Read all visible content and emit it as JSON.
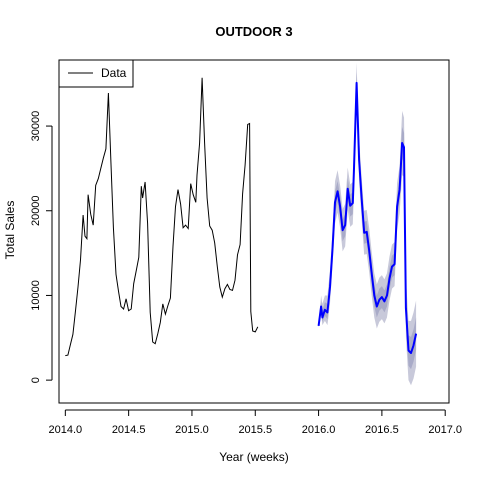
{
  "chart_data": {
    "type": "line",
    "title": "OUTDOOR 3",
    "xlabel": "Year (weeks)",
    "ylabel": "Total Sales",
    "xlim": [
      2013.95,
      2017.03
    ],
    "ylim": [
      -2700,
      37800
    ],
    "x_ticks": [
      2014.0,
      2014.5,
      2015.0,
      2015.5,
      2016.0,
      2016.5,
      2017.0
    ],
    "x_tick_labels": [
      "2014.0",
      "2014.5",
      "2015.0",
      "2015.5",
      "2016.0",
      "2016.5",
      "2017.0"
    ],
    "y_ticks": [
      0,
      10000,
      20000,
      30000
    ],
    "y_tick_labels": [
      "0",
      "10000",
      "20000",
      "30000"
    ],
    "legend": {
      "position": "top-left",
      "entries": [
        "Data"
      ]
    },
    "colors": {
      "data": "#000000",
      "forecast": "#0000ff",
      "band_outer": "#c8c9da",
      "band_inner": "#a9abc8"
    },
    "series": [
      {
        "name": "Data",
        "points": [
          [
            2014.0,
            2900
          ],
          [
            2014.02,
            2950
          ],
          [
            2014.04,
            4200
          ],
          [
            2014.06,
            5400
          ],
          [
            2014.08,
            8200
          ],
          [
            2014.1,
            11000
          ],
          [
            2014.12,
            14200
          ],
          [
            2014.14,
            19500
          ],
          [
            2014.155,
            17000
          ],
          [
            2014.17,
            16700
          ],
          [
            2014.18,
            21900
          ],
          [
            2014.2,
            19600
          ],
          [
            2014.22,
            18300
          ],
          [
            2014.24,
            23000
          ],
          [
            2014.26,
            23800
          ],
          [
            2014.28,
            25000
          ],
          [
            2014.3,
            26200
          ],
          [
            2014.32,
            27300
          ],
          [
            2014.34,
            33900
          ],
          [
            2014.36,
            25800
          ],
          [
            2014.38,
            18000
          ],
          [
            2014.4,
            12500
          ],
          [
            2014.42,
            10500
          ],
          [
            2014.44,
            8700
          ],
          [
            2014.46,
            8400
          ],
          [
            2014.48,
            9600
          ],
          [
            2014.5,
            8200
          ],
          [
            2014.52,
            8400
          ],
          [
            2014.54,
            11400
          ],
          [
            2014.56,
            12900
          ],
          [
            2014.58,
            14500
          ],
          [
            2014.6,
            22900
          ],
          [
            2014.61,
            21500
          ],
          [
            2014.63,
            23400
          ],
          [
            2014.65,
            18500
          ],
          [
            2014.67,
            8000
          ],
          [
            2014.69,
            4500
          ],
          [
            2014.71,
            4300
          ],
          [
            2014.73,
            5500
          ],
          [
            2014.75,
            6800
          ],
          [
            2014.77,
            9000
          ],
          [
            2014.79,
            7800
          ],
          [
            2014.81,
            8800
          ],
          [
            2014.83,
            9700
          ],
          [
            2014.85,
            15800
          ],
          [
            2014.87,
            20500
          ],
          [
            2014.89,
            22500
          ],
          [
            2014.91,
            20800
          ],
          [
            2014.93,
            18000
          ],
          [
            2014.95,
            18300
          ],
          [
            2014.97,
            17900
          ],
          [
            2014.99,
            23200
          ],
          [
            2015.01,
            21900
          ],
          [
            2015.03,
            21000
          ],
          [
            2015.04,
            24200
          ],
          [
            2015.06,
            28000
          ],
          [
            2015.08,
            35700
          ],
          [
            2015.1,
            28000
          ],
          [
            2015.12,
            21500
          ],
          [
            2015.14,
            18200
          ],
          [
            2015.16,
            17700
          ],
          [
            2015.18,
            16200
          ],
          [
            2015.2,
            13400
          ],
          [
            2015.22,
            11000
          ],
          [
            2015.24,
            9800
          ],
          [
            2015.26,
            10800
          ],
          [
            2015.28,
            11300
          ],
          [
            2015.3,
            10700
          ],
          [
            2015.32,
            10600
          ],
          [
            2015.34,
            11800
          ],
          [
            2015.36,
            14800
          ],
          [
            2015.38,
            16000
          ],
          [
            2015.4,
            22000
          ],
          [
            2015.42,
            25400
          ],
          [
            2015.44,
            30200
          ],
          [
            2015.455,
            30300
          ],
          [
            2015.465,
            8100
          ],
          [
            2015.48,
            5800
          ],
          [
            2015.5,
            5700
          ],
          [
            2015.52,
            6300
          ]
        ]
      },
      {
        "name": "",
        "points": [
          [
            2016.0,
            6400
          ],
          [
            2016.02,
            8700
          ],
          [
            2016.03,
            7400
          ],
          [
            2016.05,
            8300
          ],
          [
            2016.07,
            8000
          ],
          [
            2016.09,
            11000
          ],
          [
            2016.11,
            15500
          ],
          [
            2016.13,
            21000
          ],
          [
            2016.15,
            22300
          ],
          [
            2016.17,
            20500
          ],
          [
            2016.19,
            17700
          ],
          [
            2016.21,
            18300
          ],
          [
            2016.23,
            22600
          ],
          [
            2016.25,
            20600
          ],
          [
            2016.27,
            20900
          ],
          [
            2016.28,
            25000
          ],
          [
            2016.3,
            35100
          ],
          [
            2016.32,
            26000
          ],
          [
            2016.34,
            21500
          ],
          [
            2016.36,
            17400
          ],
          [
            2016.38,
            17500
          ],
          [
            2016.4,
            15300
          ],
          [
            2016.42,
            12500
          ],
          [
            2016.44,
            10000
          ],
          [
            2016.46,
            8700
          ],
          [
            2016.48,
            9500
          ],
          [
            2016.5,
            9800
          ],
          [
            2016.52,
            9300
          ],
          [
            2016.54,
            10000
          ],
          [
            2016.56,
            12000
          ],
          [
            2016.58,
            13400
          ],
          [
            2016.6,
            13700
          ],
          [
            2016.62,
            20500
          ],
          [
            2016.64,
            22500
          ],
          [
            2016.66,
            28000
          ],
          [
            2016.675,
            27500
          ],
          [
            2016.69,
            8500
          ],
          [
            2016.71,
            3500
          ],
          [
            2016.73,
            3200
          ],
          [
            2016.75,
            4100
          ],
          [
            2016.77,
            5500
          ]
        ],
        "band": [
          [
            2016.0,
            6600,
            6200,
            6500,
            6300
          ],
          [
            2016.02,
            10000,
            7800,
            9300,
            8200
          ],
          [
            2016.03,
            9000,
            6500,
            8200,
            6900
          ],
          [
            2016.05,
            10000,
            7000,
            9200,
            7600
          ],
          [
            2016.07,
            10000,
            6500,
            9000,
            7200
          ],
          [
            2016.09,
            13000,
            9000,
            12000,
            10000
          ],
          [
            2016.11,
            17500,
            13500,
            16500,
            14500
          ],
          [
            2016.13,
            23500,
            18500,
            22300,
            19700
          ],
          [
            2016.15,
            24800,
            19800,
            23500,
            21000
          ],
          [
            2016.17,
            23000,
            18000,
            21800,
            19200
          ],
          [
            2016.19,
            20200,
            15200,
            19000,
            16400
          ],
          [
            2016.21,
            20800,
            15800,
            19600,
            17000
          ],
          [
            2016.23,
            25100,
            20100,
            23900,
            21300
          ],
          [
            2016.25,
            23100,
            18100,
            21900,
            19300
          ],
          [
            2016.27,
            23400,
            18400,
            22200,
            19600
          ],
          [
            2016.28,
            27800,
            22200,
            26400,
            23600
          ],
          [
            2016.3,
            37500,
            32700,
            36300,
            33900
          ],
          [
            2016.32,
            28500,
            23500,
            27300,
            24700
          ],
          [
            2016.34,
            24000,
            19000,
            22800,
            20200
          ],
          [
            2016.36,
            20000,
            14800,
            18700,
            16100
          ],
          [
            2016.38,
            20100,
            14900,
            18800,
            16200
          ],
          [
            2016.4,
            17900,
            12700,
            16600,
            14000
          ],
          [
            2016.42,
            15100,
            9900,
            13800,
            11200
          ],
          [
            2016.44,
            12600,
            7400,
            11300,
            8700
          ],
          [
            2016.46,
            11300,
            6100,
            10000,
            7400
          ],
          [
            2016.48,
            12100,
            6900,
            10800,
            8200
          ],
          [
            2016.5,
            12400,
            7200,
            11100,
            8500
          ],
          [
            2016.52,
            11900,
            6700,
            10600,
            8000
          ],
          [
            2016.54,
            12600,
            7400,
            11300,
            8700
          ],
          [
            2016.56,
            14600,
            9400,
            13300,
            10700
          ],
          [
            2016.58,
            16000,
            10800,
            14700,
            12100
          ],
          [
            2016.6,
            16300,
            11100,
            15000,
            12400
          ],
          [
            2016.62,
            23300,
            17700,
            21900,
            19100
          ],
          [
            2016.64,
            25300,
            19700,
            23900,
            21100
          ],
          [
            2016.66,
            31800,
            24200,
            29900,
            26100
          ],
          [
            2016.675,
            31000,
            24000,
            29200,
            25800
          ],
          [
            2016.69,
            12000,
            5000,
            10200,
            6800
          ],
          [
            2016.71,
            7000,
            0,
            5300,
            1700
          ],
          [
            2016.73,
            7000,
            -600,
            5100,
            1300
          ],
          [
            2016.75,
            8000,
            200,
            6000,
            2200
          ],
          [
            2016.77,
            9400,
            1600,
            7400,
            3600
          ]
        ]
      }
    ]
  }
}
